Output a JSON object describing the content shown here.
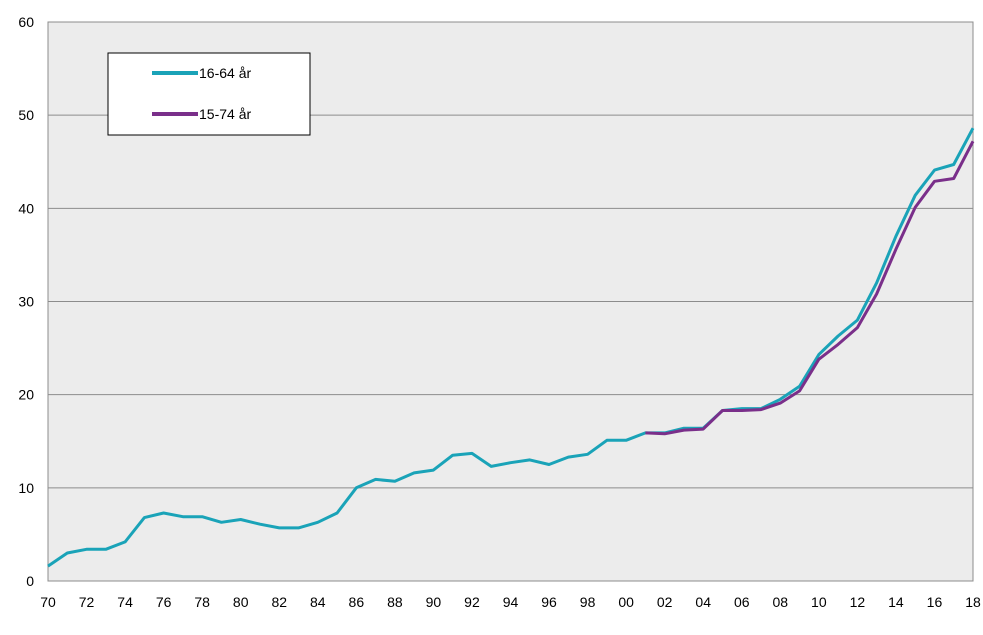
{
  "chart_data": {
    "type": "line",
    "title": "",
    "xlabel": "",
    "ylabel": "",
    "ylim": [
      0,
      60
    ],
    "yticks": [
      0,
      10,
      20,
      30,
      40,
      50,
      60
    ],
    "x": [
      1970,
      1971,
      1972,
      1973,
      1974,
      1975,
      1976,
      1977,
      1978,
      1979,
      1980,
      1981,
      1982,
      1983,
      1984,
      1985,
      1986,
      1987,
      1988,
      1989,
      1990,
      1991,
      1992,
      1993,
      1994,
      1995,
      1996,
      1997,
      1998,
      1999,
      2000,
      2001,
      2002,
      2003,
      2004,
      2005,
      2006,
      2007,
      2008,
      2009,
      2010,
      2011,
      2012,
      2013,
      2014,
      2015,
      2016,
      2017,
      2018
    ],
    "xtick_years": [
      1970,
      1972,
      1974,
      1976,
      1978,
      1980,
      1982,
      1984,
      1986,
      1988,
      1990,
      1992,
      1994,
      1996,
      1998,
      2000,
      2002,
      2004,
      2006,
      2008,
      2010,
      2012,
      2014,
      2016,
      2018
    ],
    "xtick_labels": [
      "70",
      "72",
      "74",
      "76",
      "78",
      "80",
      "82",
      "84",
      "86",
      "88",
      "90",
      "92",
      "94",
      "96",
      "98",
      "00",
      "02",
      "04",
      "06",
      "08",
      "10",
      "12",
      "14",
      "16",
      "18"
    ],
    "grid": true,
    "legend_position": "top-left",
    "background_color": "#ececec",
    "gridline_color": "#8c8c8c",
    "series": [
      {
        "name": "16-64 år",
        "color": "#1aa3b8",
        "x": [
          1970,
          1971,
          1972,
          1973,
          1974,
          1975,
          1976,
          1977,
          1978,
          1979,
          1980,
          1981,
          1982,
          1983,
          1984,
          1985,
          1986,
          1987,
          1988,
          1989,
          1990,
          1991,
          1992,
          1993,
          1994,
          1995,
          1996,
          1997,
          1998,
          1999,
          2000,
          2001,
          2002,
          2003,
          2004,
          2005,
          2006,
          2007,
          2008,
          2009,
          2010,
          2011,
          2012,
          2013,
          2014,
          2015,
          2016,
          2017,
          2018
        ],
        "values": [
          1.6,
          3.0,
          3.4,
          3.4,
          4.2,
          6.8,
          7.3,
          6.9,
          6.9,
          6.3,
          6.6,
          6.1,
          5.7,
          5.7,
          6.3,
          7.3,
          10.0,
          10.9,
          10.7,
          11.6,
          11.9,
          13.5,
          13.7,
          12.3,
          12.7,
          13.0,
          12.5,
          13.3,
          13.6,
          15.1,
          15.1,
          15.9,
          15.9,
          16.4,
          16.4,
          18.3,
          18.5,
          18.5,
          19.5,
          20.9,
          24.3,
          26.3,
          28.0,
          32.0,
          37.0,
          41.4,
          44.1,
          44.7,
          48.6
        ]
      },
      {
        "name": "15-74 år",
        "color": "#7a2f8a",
        "x": [
          2001,
          2002,
          2003,
          2004,
          2005,
          2006,
          2007,
          2008,
          2009,
          2010,
          2011,
          2012,
          2013,
          2014,
          2015,
          2016,
          2017,
          2018
        ],
        "values": [
          15.9,
          15.8,
          16.2,
          16.3,
          18.3,
          18.3,
          18.4,
          19.1,
          20.4,
          23.8,
          25.4,
          27.2,
          30.8,
          35.6,
          40.1,
          42.9,
          43.2,
          47.2
        ]
      }
    ]
  }
}
